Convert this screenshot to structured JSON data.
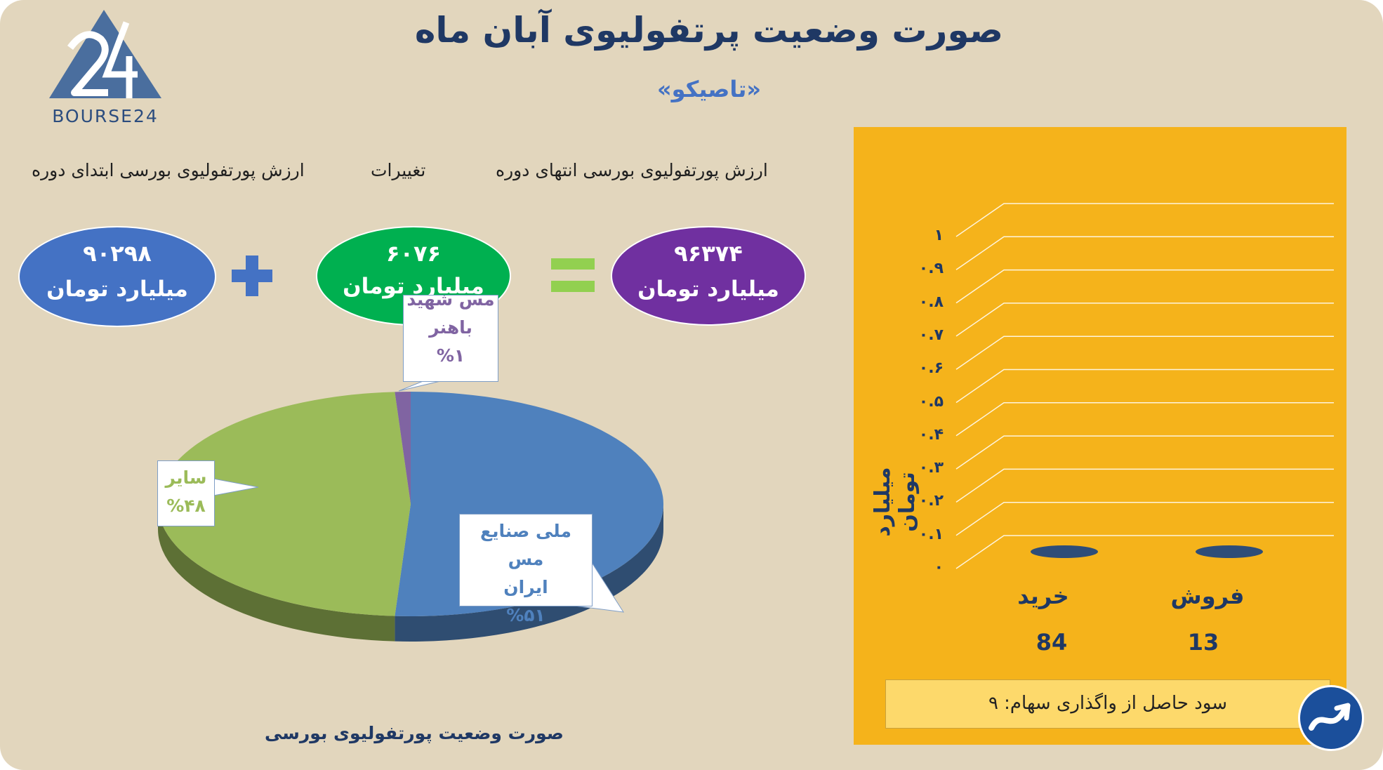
{
  "header": {
    "title": "صورت وضعیت پرتفولیوی آبان ماه",
    "subtitle": "«تاصیکو»",
    "logo_text": "BOURSE24"
  },
  "summary": {
    "start_label": "ارزش پورتفولیوی بورسی ابتدای دوره",
    "change_label": "تغییرات",
    "end_label": "ارزش پورتفولیوی بورسی انتهای دوره",
    "start_value": "۹۰۲۹۸",
    "change_value": "۶۰۷۶",
    "end_value": "۹۶۳۷۴",
    "unit": "میلیارد تومان",
    "plus_sign": "+",
    "equals_sign": "=",
    "colors": {
      "start": "#4472c4",
      "change": "#00b050",
      "end": "#7030a0"
    }
  },
  "chart_data": [
    {
      "type": "pie",
      "title": "صورت وضعیت پورتفولیوی بورسی",
      "slices": [
        {
          "label": "ملی صنایع مس ایران",
          "label_lines": [
            "ملی صنایع مس",
            "ایران"
          ],
          "value": 51,
          "value_label": "%۵۱",
          "color": "#4f81bd"
        },
        {
          "label": "سایر",
          "label_lines": [
            "سایر"
          ],
          "value": 48,
          "value_label": "%۴۸",
          "color": "#9bbb59"
        },
        {
          "label": "مس شهید باهنر",
          "label_lines": [
            "مس شهید",
            "باهنر"
          ],
          "value": 1,
          "value_label": "%۱",
          "color": "#8064a2"
        }
      ]
    },
    {
      "type": "bar",
      "ylabel": "میلیارد تومان",
      "categories": [
        "خرید",
        "فروش"
      ],
      "values": [
        0,
        0
      ],
      "category_counts": [
        "84",
        "13"
      ],
      "yticks": [
        "۰",
        "۰.۱",
        "۰.۲",
        "۰.۳",
        "۰.۴",
        "۰.۵",
        "۰.۶",
        "۰.۷",
        "۰.۸",
        "۰.۹",
        "۱"
      ],
      "ylim": [
        0,
        1
      ],
      "grid": true,
      "colors": {
        "panel": "#f5b31b",
        "bars": "#2e4d78",
        "grid": "#ffffff"
      }
    }
  ],
  "profit_note": "سود حاصل از واگذاری سهام: ۹"
}
